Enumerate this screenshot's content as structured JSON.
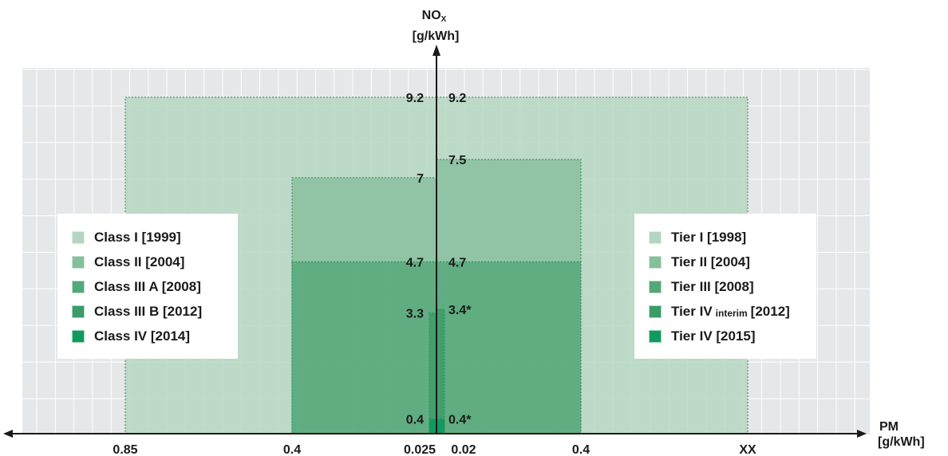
{
  "chart_data": {
    "type": "area",
    "y_axis": {
      "label_main": "NO",
      "label_sub": "X",
      "unit": "[g/kWh]"
    },
    "x_axis": {
      "label": "PM",
      "unit": "[g/kWh]",
      "left_ticks": [
        "0.85",
        "0.4",
        "0.025"
      ],
      "right_ticks": [
        "0.02",
        "0.4",
        "XX"
      ]
    },
    "left_regions": [
      {
        "label": "Class I [1999]",
        "pm": 0.85,
        "nox": 9.2,
        "nox_label": "9.2",
        "color": "#b3d6c0"
      },
      {
        "label": "Class II [2004]",
        "pm": 0.4,
        "nox": 7,
        "nox_label": "7",
        "color": "#86bf9c"
      },
      {
        "label": "Class III A [2008]",
        "pm": 0.4,
        "nox": 4.7,
        "nox_label": "4.7",
        "color": "#55a87a"
      },
      {
        "label": "Class III B [2012]",
        "pm": 0.025,
        "nox": 3.3,
        "nox_label": "3.3",
        "color": "#3a9c68"
      },
      {
        "label": "Class IV [2014]",
        "pm": 0.025,
        "nox": 0.4,
        "nox_label": "0.4",
        "color": "#119a5e"
      }
    ],
    "right_regions": [
      {
        "label": "Tier I [1998]",
        "pm": "XX",
        "nox": 9.2,
        "nox_label": "9.2",
        "color": "#b3d6c0"
      },
      {
        "label": "Tier II [2004]",
        "pm": 0.4,
        "nox": 7.5,
        "nox_label": "7.5",
        "color": "#86bf9c"
      },
      {
        "label": "Tier III [2008]",
        "pm": 0.4,
        "nox": 4.7,
        "nox_label": "4.7",
        "color": "#55a87a"
      },
      {
        "label_pre": "Tier IV",
        "label_sub": "interim",
        "label_post": "[2012]",
        "pm": 0.02,
        "nox": 3.4,
        "nox_label": "3.4*",
        "color": "#3a9c68"
      },
      {
        "label": "Tier IV [2015]",
        "pm": 0.02,
        "nox": 0.4,
        "nox_label": "0.4*",
        "color": "#119a5e"
      }
    ],
    "grid": true,
    "background": "#e6e7e9",
    "axis_color": "#1a1a1a"
  }
}
